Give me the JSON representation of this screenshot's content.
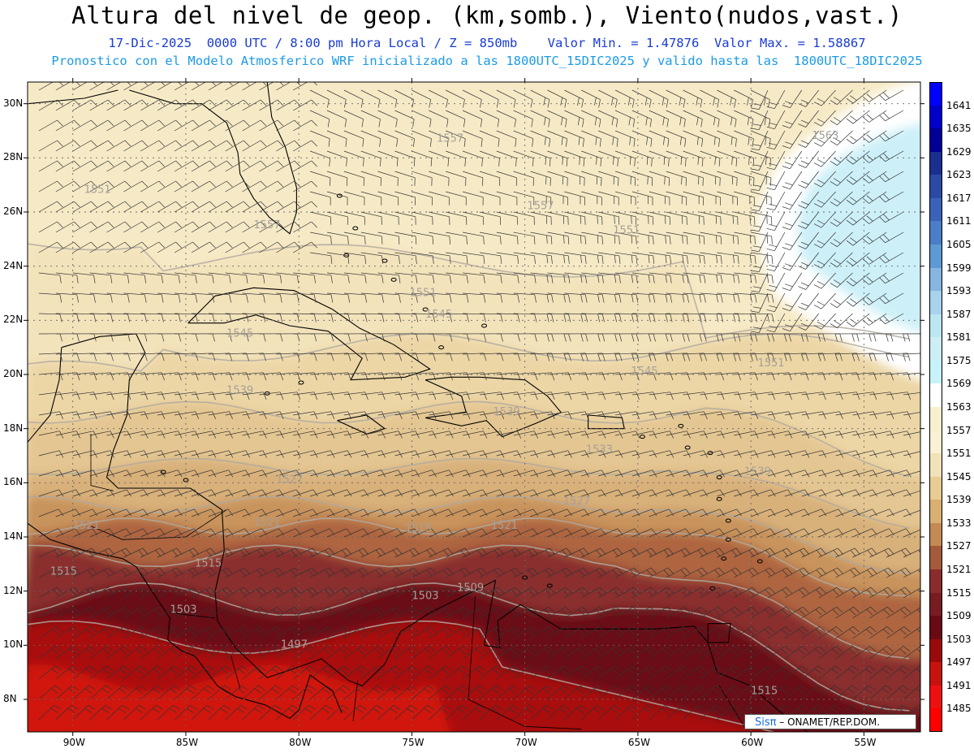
{
  "title": "Altura del nivel de geop. (km,somb.), Viento(nudos,vast.)",
  "subtitle1": "17-Dic-2025  0000 UTC / 8:00 pm Hora Local / Z = 850mb    Valor Min. = 1.47876  Valor Max. = 1.58867",
  "subtitle2": "Pronostico con el Modelo Atmosferico WRF inicializado a las 1800UTC_15DIC2025 y valido hasta las  1800UTC_18DIC2025",
  "credit": {
    "logo": "Sisπ",
    "text": "– ONAMET/REP.DOM."
  },
  "map": {
    "lon_range": [
      -92,
      -52.5
    ],
    "lat_range": [
      6.8,
      30.8
    ],
    "lon_labels": [
      "90W",
      "85W",
      "80W",
      "75W",
      "70W",
      "65W",
      "60W",
      "55W"
    ],
    "lat_labels": [
      "30N",
      "28N",
      "26N",
      "24N",
      "22N",
      "20N",
      "18N",
      "16N",
      "14N",
      "12N",
      "10N",
      "8N"
    ],
    "contour_labels": [
      {
        "text": "1551",
        "lon": -89.5,
        "lat": 26.7
      },
      {
        "text": "1557",
        "lon": -82.0,
        "lat": 25.4
      },
      {
        "text": "1557",
        "lon": -73.9,
        "lat": 28.6
      },
      {
        "text": "1557",
        "lon": -69.9,
        "lat": 26.1
      },
      {
        "text": "1563",
        "lon": -57.3,
        "lat": 28.7
      },
      {
        "text": "1551",
        "lon": -66.1,
        "lat": 25.2
      },
      {
        "text": "1551",
        "lon": -75.1,
        "lat": 22.9
      },
      {
        "text": "1545",
        "lon": -74.4,
        "lat": 22.1
      },
      {
        "text": "1545",
        "lon": -83.2,
        "lat": 21.4
      },
      {
        "text": "1545",
        "lon": -65.3,
        "lat": 20.0
      },
      {
        "text": "1551",
        "lon": -59.7,
        "lat": 20.3
      },
      {
        "text": "1539",
        "lon": -83.2,
        "lat": 19.3
      },
      {
        "text": "1539",
        "lon": -71.4,
        "lat": 18.5
      },
      {
        "text": "1533",
        "lon": -67.3,
        "lat": 17.1
      },
      {
        "text": "1539",
        "lon": -60.3,
        "lat": 16.3
      },
      {
        "text": "1527",
        "lon": -81.0,
        "lat": 16.0
      },
      {
        "text": "1527",
        "lon": -68.3,
        "lat": 15.2
      },
      {
        "text": "1521",
        "lon": -90.0,
        "lat": 14.3
      },
      {
        "text": "1521",
        "lon": -82.0,
        "lat": 14.4
      },
      {
        "text": "1521",
        "lon": -71.5,
        "lat": 14.3
      },
      {
        "text": "1515",
        "lon": -75.3,
        "lat": 14.2
      },
      {
        "text": "1515",
        "lon": -91.0,
        "lat": 12.6
      },
      {
        "text": "1515",
        "lon": -84.6,
        "lat": 12.9
      },
      {
        "text": "1509",
        "lon": -73.0,
        "lat": 12.0
      },
      {
        "text": "1503",
        "lon": -85.7,
        "lat": 11.2
      },
      {
        "text": "1503",
        "lon": -75.0,
        "lat": 11.7
      },
      {
        "text": "1497",
        "lon": -80.8,
        "lat": 9.9
      },
      {
        "text": "1515",
        "lon": -60.0,
        "lat": 8.2
      }
    ],
    "legend": {
      "levels": [
        "1641",
        "1635",
        "1629",
        "1623",
        "1617",
        "1611",
        "1605",
        "1599",
        "1593",
        "1587",
        "1581",
        "1575",
        "1569",
        "1563",
        "1557",
        "1551",
        "1545",
        "1539",
        "1533",
        "1527",
        "1521",
        "1515",
        "1509",
        "1503",
        "1497",
        "1491",
        "1485"
      ],
      "colors": [
        "#0000ff",
        "#0000c8",
        "#000096",
        "#1a2f8f",
        "#2c4aa3",
        "#3a62b8",
        "#4a7ec8",
        "#5f99d4",
        "#86b5e0",
        "#a8d3ec",
        "#bde6f3",
        "#cdeef7",
        "#c8f2fa",
        "#ffffff",
        "#f7f0cf",
        "#f9f1d3",
        "#f1e2b8",
        "#e8cc93",
        "#d9b072",
        "#c48a54",
        "#a55a3a",
        "#8a2c2c",
        "#781c24",
        "#6a0a14",
        "#9a0a0a",
        "#c8120e",
        "#ee1010",
        "#ff0000"
      ]
    }
  }
}
